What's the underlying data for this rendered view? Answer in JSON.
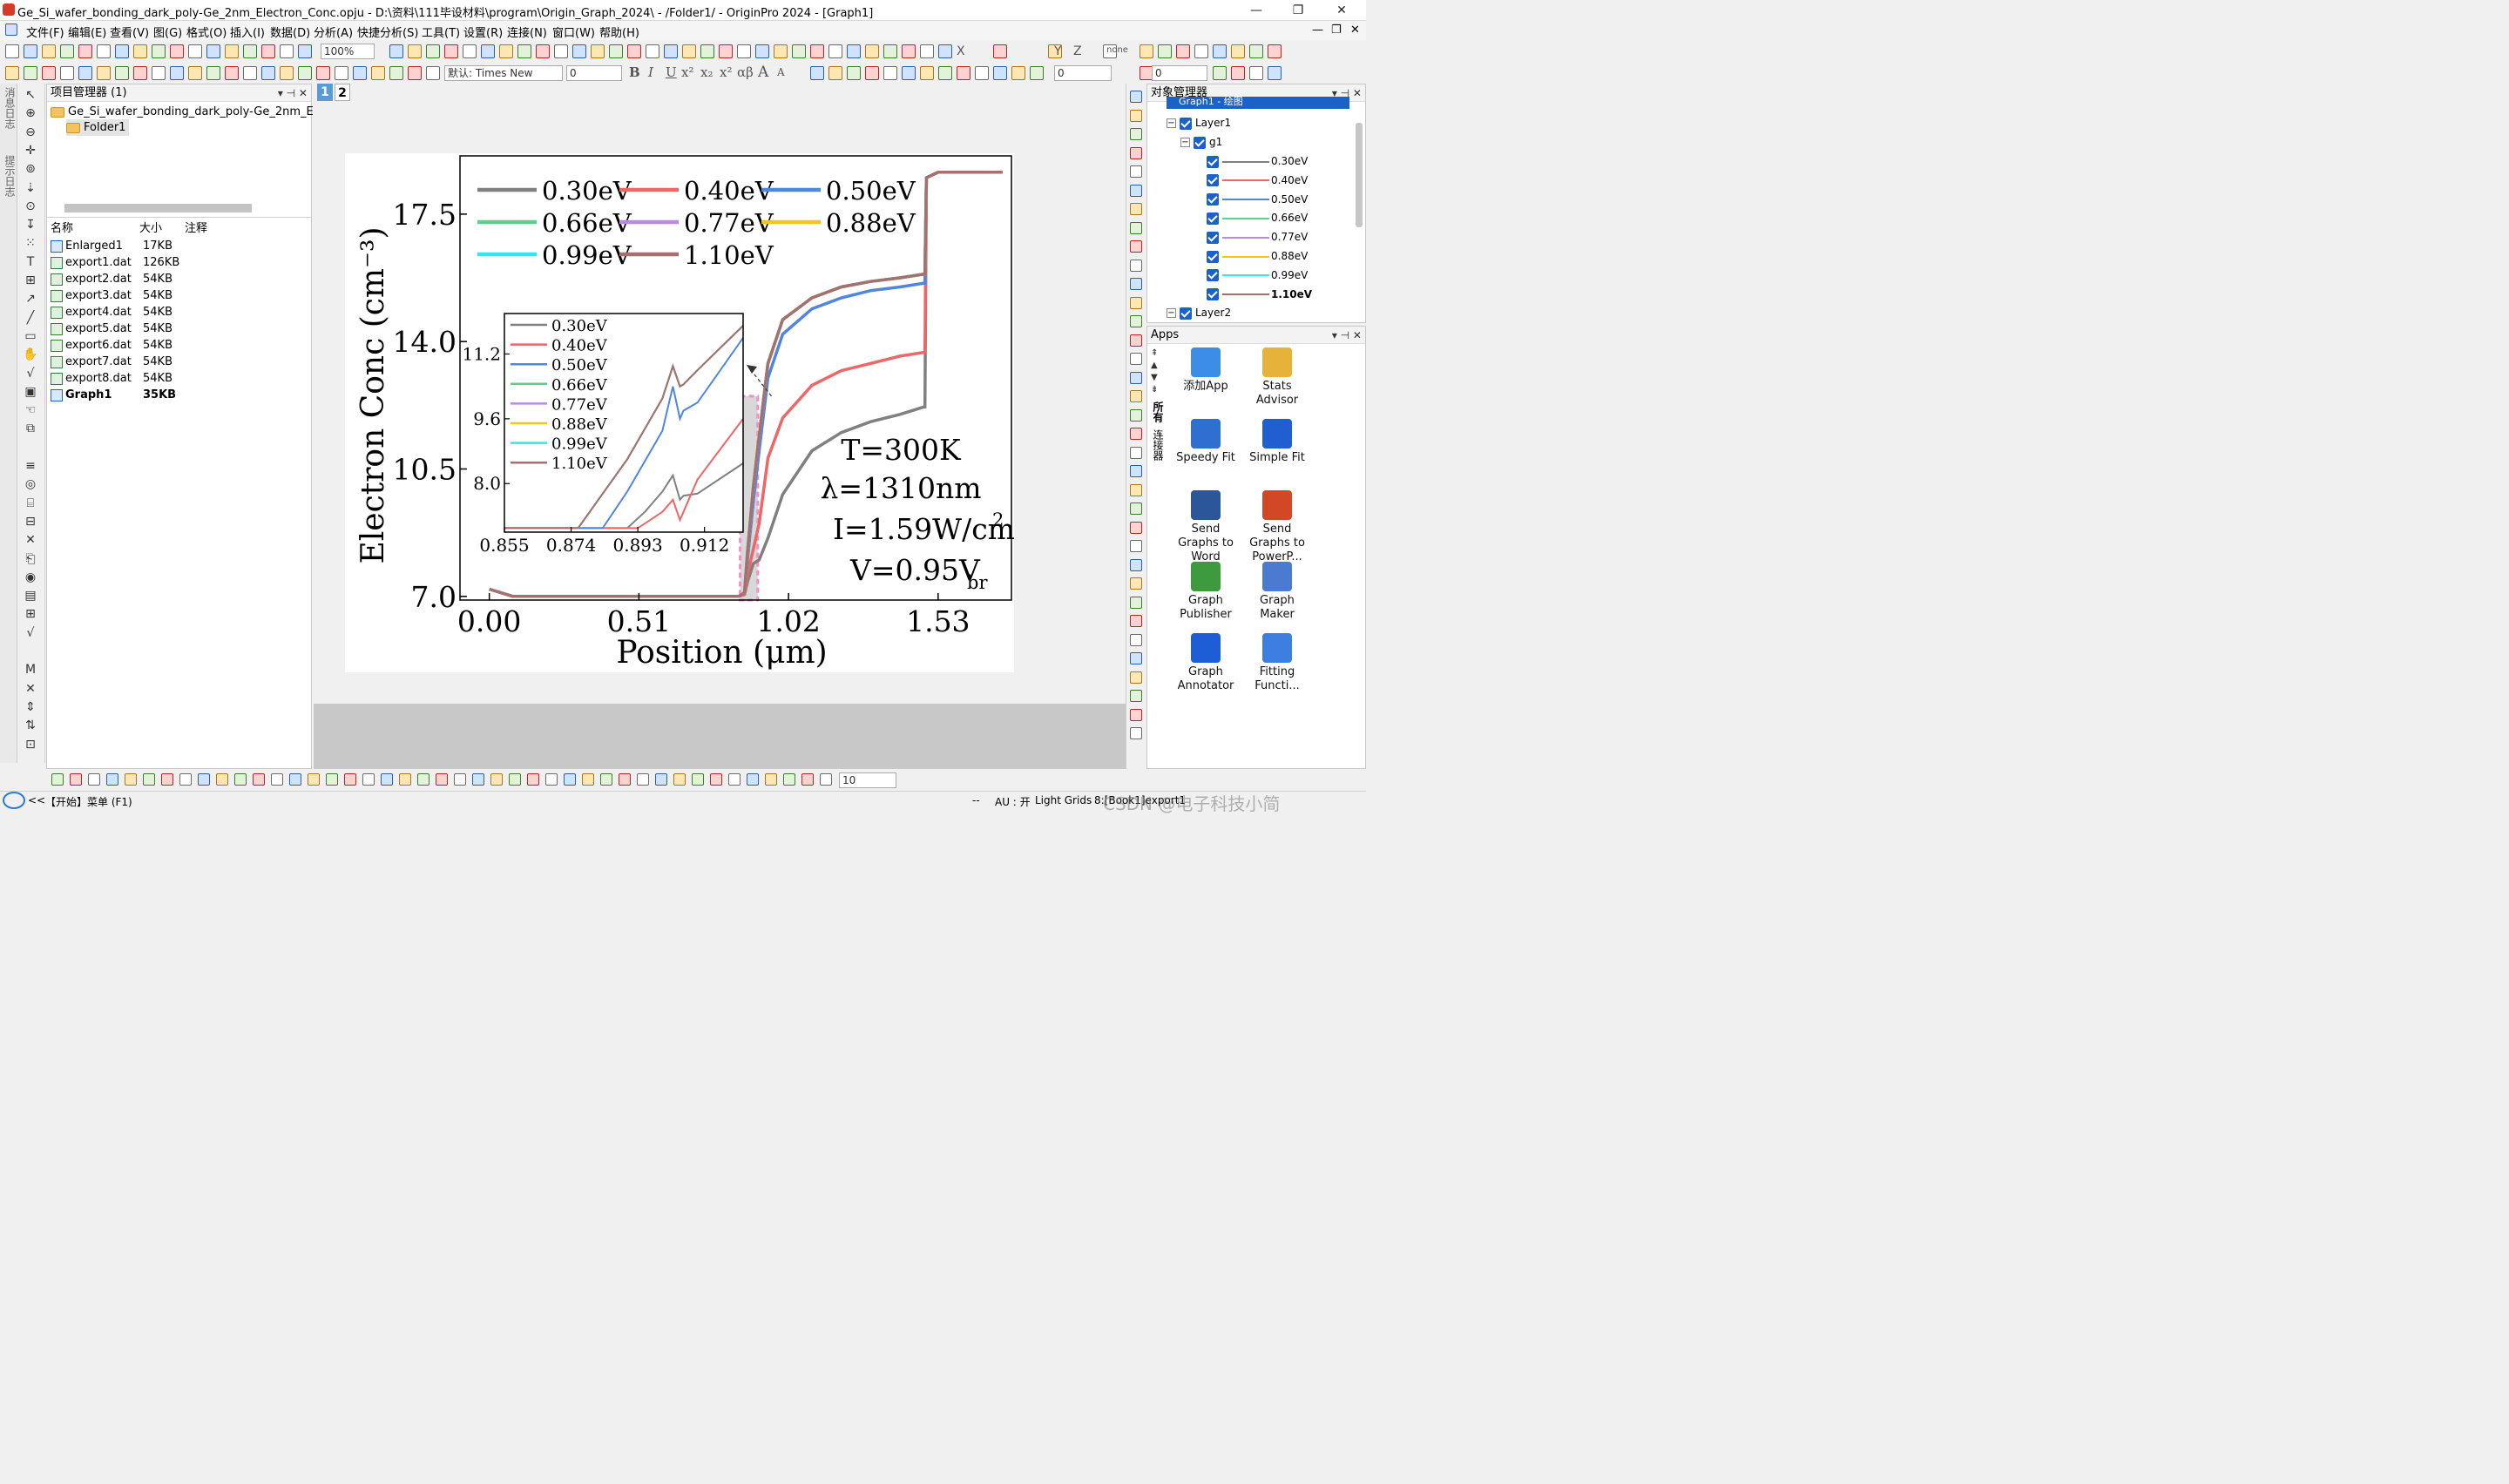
{
  "window": {
    "title": "Ge_Si_wafer_bonding_dark_poly-Ge_2nm_Electron_Conc.opju - D:\\资料\\111毕设材料\\program\\Origin_Graph_2024\\ - /Folder1/ - OriginPro 2024 - [Graph1]",
    "min": "—",
    "max": "❐",
    "close": "✕"
  },
  "menu": [
    "文件(F)",
    "编辑(E)",
    "查看(V)",
    "图(G)",
    "格式(O)",
    "插入(I)",
    "数据(D)",
    "分析(A)",
    "快捷分析(S)",
    "工具(T)",
    "设置(R)",
    "连接(N)",
    "窗口(W)",
    "帮助(H)"
  ],
  "toolbar": {
    "zoom": "100%",
    "font": "默认: Times New",
    "font_size": "0",
    "bold": "B",
    "italic": "I",
    "underline": "U",
    "sup": "x²",
    "sub": "x₂",
    "sup2": "x²",
    "greek": "αβ",
    "bigA": "A",
    "smallA": "A",
    "axis_labels": [
      "X",
      "Y",
      "Z"
    ],
    "none": "none",
    "line_width": "0",
    "fill_width": "0",
    "bottom_zoom": "10"
  },
  "left_strip": [
    "消息日志",
    "提示日志"
  ],
  "project_manager": {
    "title": "项目管理器 (1)",
    "root": "Ge_Si_wafer_bonding_dark_poly-Ge_2nm_Ele",
    "folder": "Folder1",
    "columns": [
      "名称",
      "大小",
      "注释"
    ],
    "files": [
      {
        "name": "Enlarged1",
        "size": "17KB",
        "type": "graph"
      },
      {
        "name": "export1.dat",
        "size": "126KB",
        "type": "data"
      },
      {
        "name": "export2.dat",
        "size": "54KB",
        "type": "data"
      },
      {
        "name": "export3.dat",
        "size": "54KB",
        "type": "data"
      },
      {
        "name": "export4.dat",
        "size": "54KB",
        "type": "data"
      },
      {
        "name": "export5.dat",
        "size": "54KB",
        "type": "data"
      },
      {
        "name": "export6.dat",
        "size": "54KB",
        "type": "data"
      },
      {
        "name": "export7.dat",
        "size": "54KB",
        "type": "data"
      },
      {
        "name": "export8.dat",
        "size": "54KB",
        "type": "data"
      },
      {
        "name": "Graph1",
        "size": "35KB",
        "type": "graph"
      }
    ]
  },
  "layer_tabs": [
    "1",
    "2"
  ],
  "object_manager": {
    "title": "对象管理器",
    "graph": "Graph1 - 绘图",
    "layer1": "Layer1",
    "group": "g1",
    "layer2": "Layer2",
    "curves": [
      {
        "name": "0.30eV",
        "color": "#808080"
      },
      {
        "name": "0.40eV",
        "color": "#ee6666"
      },
      {
        "name": "0.50eV",
        "color": "#4f86e0"
      },
      {
        "name": "0.66eV",
        "color": "#5ccf8c"
      },
      {
        "name": "0.77eV",
        "color": "#b98be0"
      },
      {
        "name": "0.88eV",
        "color": "#f5c518"
      },
      {
        "name": "0.99eV",
        "color": "#2ee8ee"
      },
      {
        "name": "1.10eV",
        "color": "#a5706e"
      }
    ]
  },
  "apps": {
    "title": "Apps",
    "side_tabs": [
      "所有",
      "连接器"
    ],
    "items": [
      {
        "label": "添加App",
        "icon": "add-app-icon"
      },
      {
        "label": "Stats Advisor",
        "icon": "stats-advisor-icon"
      },
      {
        "label": "Speedy Fit",
        "icon": "speedy-fit-icon"
      },
      {
        "label": "Simple Fit",
        "icon": "simple-fit-icon"
      },
      {
        "label": "Send Graphs to Word",
        "icon": "word-icon"
      },
      {
        "label": "Send Graphs to PowerP...",
        "icon": "powerpoint-icon"
      },
      {
        "label": "Graph Publisher",
        "icon": "graph-publisher-icon"
      },
      {
        "label": "Graph Maker",
        "icon": "graph-maker-icon"
      },
      {
        "label": "Graph Annotator",
        "icon": "graph-annotator-icon"
      },
      {
        "label": "Fitting Functi...",
        "icon": "fitting-functions-icon"
      }
    ]
  },
  "status": {
    "arrow": "<<",
    "start": "【开始】菜单 (F1)",
    "dashes": "--",
    "au": "AU : 开",
    "grids": "Light Grids",
    "book": "8:[Book1]export1",
    "watermark": "CSDN @电子科技小简"
  },
  "chart_data": {
    "type": "line",
    "xlabel": "Position (μm)",
    "ylabel": "Electron Conc (cm⁻³)",
    "xlim": [
      -0.1,
      1.78
    ],
    "ylim": [
      6.9,
      19.1
    ],
    "xticks": [
      "0.00",
      "0.51",
      "1.02",
      "1.53"
    ],
    "yticks": [
      "7.0",
      "10.5",
      "14.0",
      "17.5"
    ],
    "legend": "top-left",
    "annotations": [
      "T=300K",
      "λ=1310nm",
      "I=1.59W/cm",
      "2",
      "V=0.95V",
      "br"
    ],
    "series": [
      {
        "name": "0.30eV",
        "color": "#808080",
        "x": [
          0,
          0.08,
          0.85,
          0.87,
          0.88,
          0.9,
          0.92,
          0.95,
          1.0,
          1.1,
          1.2,
          1.3,
          1.4,
          1.48,
          1.485,
          1.49,
          1.53,
          1.62,
          1.75
        ],
        "y": [
          7.2,
          7.0,
          7.0,
          7.05,
          7.4,
          7.9,
          8.0,
          8.6,
          9.8,
          11.0,
          11.5,
          11.8,
          12.0,
          12.2,
          12.2,
          18.5,
          18.65,
          18.65,
          18.65
        ]
      },
      {
        "name": "0.40eV",
        "color": "#ee6666",
        "x": [
          0,
          0.08,
          0.85,
          0.87,
          0.88,
          0.9,
          0.92,
          0.95,
          1.0,
          1.1,
          1.2,
          1.3,
          1.4,
          1.48,
          1.485,
          1.49,
          1.53,
          1.62,
          1.75
        ],
        "y": [
          7.2,
          7.0,
          7.0,
          7.05,
          7.6,
          8.3,
          9.0,
          10.8,
          11.9,
          12.8,
          13.2,
          13.4,
          13.6,
          13.7,
          13.7,
          18.5,
          18.65,
          18.65,
          18.65
        ]
      },
      {
        "name": "0.50eV",
        "color": "#4f86e0",
        "x": [
          0,
          0.08,
          0.85,
          0.87,
          0.88,
          0.9,
          0.92,
          0.95,
          1.0,
          1.1,
          1.2,
          1.3,
          1.4,
          1.48,
          1.485,
          1.49,
          1.53,
          1.62,
          1.75
        ],
        "y": [
          7.2,
          7.0,
          7.0,
          7.1,
          8.0,
          9.6,
          11.0,
          13.0,
          14.2,
          14.9,
          15.2,
          15.4,
          15.5,
          15.6,
          15.6,
          18.5,
          18.65,
          18.65,
          18.65
        ]
      },
      {
        "name": "0.66eV",
        "color": "#5ccf8c",
        "x": [
          0,
          0.08,
          0.85,
          0.87,
          0.88,
          0.9,
          0.92,
          0.95,
          1.0,
          1.1,
          1.2,
          1.3,
          1.4,
          1.48,
          1.485,
          1.49,
          1.53,
          1.62,
          1.75
        ],
        "y": [
          7.2,
          7.0,
          7.0,
          7.1,
          8.2,
          10.0,
          11.4,
          13.4,
          14.6,
          15.2,
          15.5,
          15.65,
          15.75,
          15.85,
          15.85,
          18.5,
          18.65,
          18.65,
          18.65
        ]
      },
      {
        "name": "0.77eV",
        "color": "#b98be0",
        "x": [
          0,
          0.08,
          0.85,
          0.87,
          0.88,
          0.9,
          0.92,
          0.95,
          1.0,
          1.1,
          1.2,
          1.3,
          1.4,
          1.48,
          1.485,
          1.49,
          1.53,
          1.62,
          1.75
        ],
        "y": [
          7.2,
          7.0,
          7.0,
          7.1,
          8.2,
          10.0,
          11.4,
          13.4,
          14.6,
          15.2,
          15.5,
          15.65,
          15.75,
          15.85,
          15.85,
          18.5,
          18.65,
          18.65,
          18.65
        ]
      },
      {
        "name": "0.88eV",
        "color": "#f5c518",
        "x": [
          0,
          0.08,
          0.85,
          0.87,
          0.88,
          0.9,
          0.92,
          0.95,
          1.0,
          1.1,
          1.2,
          1.3,
          1.4,
          1.48,
          1.485,
          1.49,
          1.53,
          1.62,
          1.75
        ],
        "y": [
          7.2,
          7.0,
          7.0,
          7.1,
          8.2,
          10.0,
          11.4,
          13.4,
          14.6,
          15.2,
          15.5,
          15.65,
          15.75,
          15.85,
          15.85,
          18.5,
          18.65,
          18.65,
          18.65
        ]
      },
      {
        "name": "0.99eV",
        "color": "#2ee8ee",
        "x": [
          0,
          0.08,
          0.85,
          0.87,
          0.88,
          0.9,
          0.92,
          0.95,
          1.0,
          1.1,
          1.2,
          1.3,
          1.4,
          1.48,
          1.485,
          1.49,
          1.53,
          1.62,
          1.75
        ],
        "y": [
          7.2,
          7.0,
          7.0,
          7.1,
          8.2,
          10.0,
          11.4,
          13.4,
          14.6,
          15.2,
          15.5,
          15.65,
          15.75,
          15.85,
          15.85,
          18.5,
          18.65,
          18.65,
          18.65
        ]
      },
      {
        "name": "1.10eV",
        "color": "#a5706e",
        "x": [
          0,
          0.08,
          0.85,
          0.87,
          0.88,
          0.9,
          0.92,
          0.95,
          1.0,
          1.1,
          1.2,
          1.3,
          1.4,
          1.48,
          1.485,
          1.49,
          1.53,
          1.62,
          1.75
        ],
        "y": [
          7.2,
          7.0,
          7.0,
          7.1,
          8.2,
          10.0,
          11.4,
          13.4,
          14.6,
          15.2,
          15.5,
          15.65,
          15.75,
          15.85,
          15.85,
          18.5,
          18.65,
          18.65,
          18.65
        ]
      }
    ],
    "highlight_x": [
      0.855,
      0.915
    ],
    "inset": {
      "xlim": [
        0.855,
        0.923
      ],
      "ylim": [
        6.8,
        12.2
      ],
      "xticks": [
        "0.855",
        "0.874",
        "0.893",
        "0.912"
      ],
      "yticks": [
        "8.0",
        "9.6",
        "11.2"
      ],
      "series": [
        {
          "name": "0.30eV",
          "color": "#808080",
          "x": [
            0.855,
            0.89,
            0.895,
            0.9,
            0.903,
            0.905,
            0.906,
            0.91,
            0.923
          ],
          "y": [
            6.9,
            6.9,
            7.3,
            7.8,
            8.2,
            7.6,
            7.7,
            7.75,
            8.5
          ]
        },
        {
          "name": "0.40eV",
          "color": "#ee6666",
          "x": [
            0.855,
            0.893,
            0.9,
            0.903,
            0.905,
            0.906,
            0.91,
            0.923
          ],
          "y": [
            6.9,
            6.9,
            7.3,
            7.6,
            7.1,
            7.3,
            8.1,
            9.6
          ]
        },
        {
          "name": "0.50eV",
          "color": "#4f86e0",
          "x": [
            0.855,
            0.883,
            0.89,
            0.9,
            0.903,
            0.905,
            0.906,
            0.91,
            0.923
          ],
          "y": [
            6.9,
            6.9,
            7.8,
            9.3,
            10.4,
            9.6,
            9.8,
            10.0,
            11.6
          ]
        },
        {
          "name": "0.66eV",
          "color": "#5ccf8c",
          "x": [
            0.855,
            0.876,
            0.89,
            0.9,
            0.903,
            0.905,
            0.906,
            0.91,
            0.923
          ],
          "y": [
            6.9,
            6.9,
            8.6,
            10.1,
            10.9,
            10.4,
            10.45,
            10.8,
            11.9
          ]
        },
        {
          "name": "0.77eV",
          "color": "#b98be0",
          "x": [
            0.855,
            0.876,
            0.89,
            0.9,
            0.903,
            0.905,
            0.906,
            0.91,
            0.923
          ],
          "y": [
            6.9,
            6.9,
            8.6,
            10.1,
            10.9,
            10.4,
            10.45,
            10.8,
            11.9
          ]
        },
        {
          "name": "0.88eV",
          "color": "#f5c518",
          "x": [
            0.855,
            0.876,
            0.89,
            0.9,
            0.903,
            0.905,
            0.906,
            0.91,
            0.923
          ],
          "y": [
            6.9,
            6.9,
            8.6,
            10.1,
            10.9,
            10.4,
            10.45,
            10.8,
            11.9
          ]
        },
        {
          "name": "0.99eV",
          "color": "#2ee8ee",
          "x": [
            0.855,
            0.876,
            0.89,
            0.9,
            0.903,
            0.905,
            0.906,
            0.91,
            0.923
          ],
          "y": [
            6.9,
            6.9,
            8.6,
            10.1,
            10.9,
            10.4,
            10.45,
            10.8,
            11.9
          ]
        },
        {
          "name": "1.10eV",
          "color": "#a5706e",
          "x": [
            0.855,
            0.876,
            0.89,
            0.9,
            0.903,
            0.905,
            0.906,
            0.91,
            0.923
          ],
          "y": [
            6.9,
            6.9,
            8.6,
            10.1,
            10.9,
            10.4,
            10.45,
            10.8,
            11.9
          ]
        }
      ]
    }
  }
}
